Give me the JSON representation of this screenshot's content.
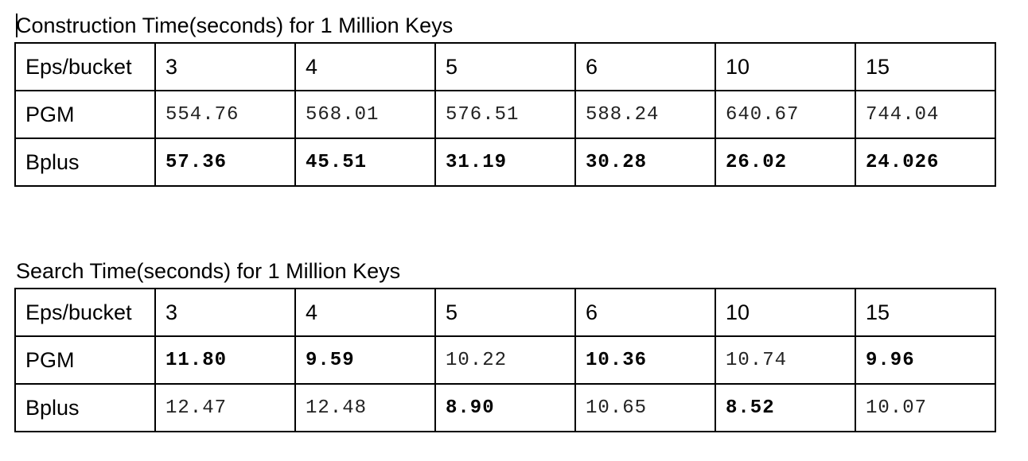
{
  "tables": [
    {
      "caption": "Construction Time(seconds) for 1 Million Keys",
      "header": [
        "Eps/bucket",
        "3",
        "4",
        "5",
        "6",
        "10",
        "15"
      ],
      "rows": [
        {
          "label": "PGM",
          "values": [
            "554.76",
            "568.01",
            "576.51",
            "588.24",
            "640.67",
            "744.04"
          ],
          "bold": [
            false,
            false,
            false,
            false,
            false,
            false
          ]
        },
        {
          "label": "Bplus",
          "values": [
            "57.36",
            "45.51",
            "31.19",
            "30.28",
            "26.02",
            "24.026"
          ],
          "bold": [
            true,
            true,
            true,
            true,
            true,
            true
          ]
        }
      ]
    },
    {
      "caption": "Search Time(seconds) for 1 Million Keys",
      "header": [
        "Eps/bucket",
        "3",
        "4",
        "5",
        "6",
        "10",
        "15"
      ],
      "rows": [
        {
          "label": "PGM",
          "values": [
            "11.80",
            "9.59",
            "10.22",
            "10.36",
            "10.74",
            "9.96"
          ],
          "bold": [
            true,
            true,
            false,
            true,
            false,
            true
          ]
        },
        {
          "label": "Bplus",
          "values": [
            "12.47",
            "12.48",
            "8.90",
            "10.65",
            "8.52",
            "10.07"
          ],
          "bold": [
            false,
            false,
            true,
            false,
            true,
            false
          ]
        }
      ]
    }
  ]
}
